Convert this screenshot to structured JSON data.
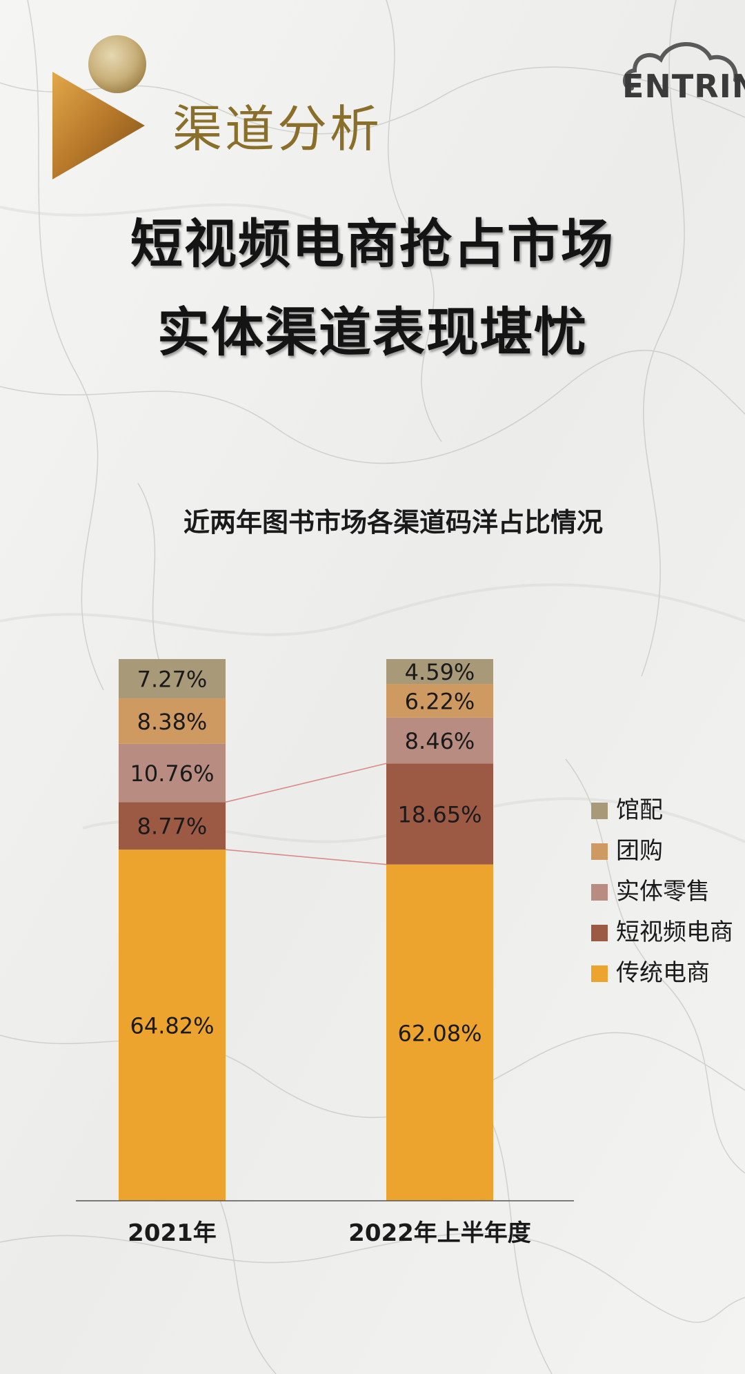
{
  "header": {
    "section_title": "渠道分析",
    "headline_line1": "短视频电商抢占市场",
    "headline_line2": "实体渠道表现堪忧",
    "logo_text": "ENTRIN"
  },
  "colors": {
    "gold_dark": "#8a6f2a",
    "series": [
      "#eda42e",
      "#9c5a45",
      "#b88c80",
      "#cf9a62",
      "#a89a78"
    ]
  },
  "chart_data": {
    "type": "bar",
    "stacked": true,
    "title": "近两年图书市场各渠道码洋占比情况",
    "categories": [
      "2021年",
      "2022年上半年度"
    ],
    "series": [
      {
        "name": "传统电商",
        "values": [
          64.82,
          62.08
        ],
        "labels": [
          "64.82%",
          "62.08%"
        ]
      },
      {
        "name": "短视频电商",
        "values": [
          8.77,
          18.65
        ],
        "labels": [
          "8.77%",
          "18.65%"
        ]
      },
      {
        "name": "实体零售",
        "values": [
          10.76,
          8.46
        ],
        "labels": [
          "10.76%",
          "8.46%"
        ]
      },
      {
        "name": "团购",
        "values": [
          8.38,
          6.22
        ],
        "labels": [
          "8.38%",
          "6.22%"
        ]
      },
      {
        "name": "馆配",
        "values": [
          7.27,
          4.59
        ],
        "labels": [
          "7.27%",
          "4.59%"
        ]
      }
    ],
    "legend_order": [
      "馆配",
      "团购",
      "实体零售",
      "短视频电商",
      "传统电商"
    ],
    "legend_position": "right",
    "grid": false
  }
}
